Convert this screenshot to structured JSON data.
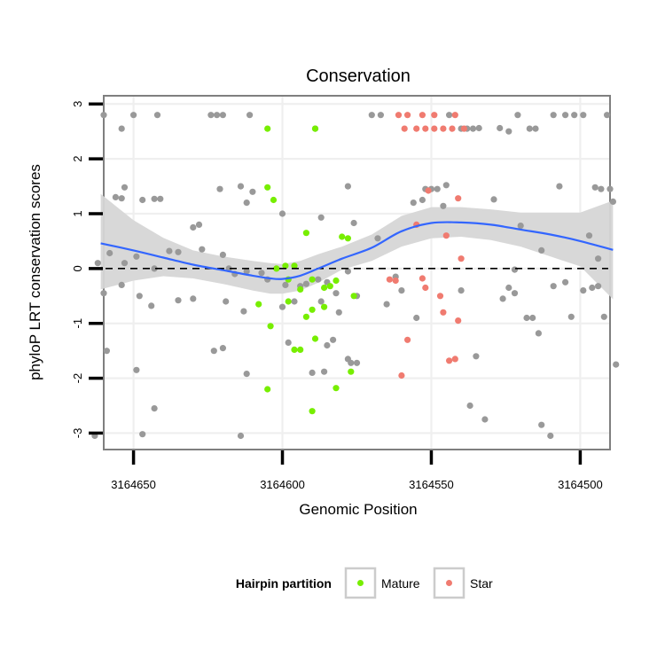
{
  "chart_data": {
    "type": "scatter",
    "title": "Conservation",
    "xlabel": "Genomic Position",
    "ylabel": "phyloP LRT conservation scores",
    "x_reversed": true,
    "xlim": [
      3164660,
      3164490
    ],
    "ylim": [
      -3.3,
      3.15
    ],
    "x_ticks": [
      3164650,
      3164600,
      3164550,
      3164500
    ],
    "x_tick_labels": [
      "3164650",
      "3164600",
      "3164550",
      "3164500"
    ],
    "y_ticks": [
      -3,
      -2,
      -1,
      0,
      1,
      2,
      3
    ],
    "y_tick_labels": [
      "-3",
      "-2",
      "-1",
      "0",
      "1",
      "2",
      "3"
    ],
    "grid": true,
    "reference_line": {
      "y": 0,
      "style": "dashed"
    },
    "legend": {
      "title": "Hairpin partition",
      "position": "bottom",
      "entries": [
        {
          "label": "Mature",
          "color": "#77ee00"
        },
        {
          "label": "Star",
          "color": "#f07b70"
        }
      ]
    },
    "background_color": "#999999",
    "smooth": {
      "color": "#3366ff",
      "band_color": "#d6d6d6",
      "x": [
        3164661,
        3164650,
        3164640,
        3164630,
        3164620,
        3164610,
        3164604,
        3164600,
        3164594,
        3164588,
        3164580,
        3164570,
        3164560,
        3164550,
        3164540,
        3164530,
        3164520,
        3164510,
        3164500,
        3164489
      ],
      "y": [
        0.46,
        0.33,
        0.2,
        0.07,
        -0.03,
        -0.13,
        -0.18,
        -0.19,
        -0.13,
        0.0,
        0.18,
        0.38,
        0.68,
        0.83,
        0.84,
        0.8,
        0.71,
        0.62,
        0.5,
        0.34
      ],
      "lower": [
        -0.38,
        -0.22,
        -0.14,
        -0.18,
        -0.28,
        -0.4,
        -0.46,
        -0.46,
        -0.4,
        -0.26,
        -0.02,
        0.14,
        0.4,
        0.55,
        0.58,
        0.52,
        0.4,
        0.22,
        0.04,
        -0.56
      ],
      "upper": [
        1.36,
        0.88,
        0.56,
        0.33,
        0.22,
        0.14,
        0.1,
        0.08,
        0.14,
        0.26,
        0.4,
        0.62,
        0.96,
        1.12,
        1.12,
        1.08,
        1.02,
        1.02,
        1.02,
        1.24
      ]
    },
    "series": [
      {
        "group": "Other",
        "color": "#999999",
        "points": [
          [
            3164660,
            2.8
          ],
          [
            3164650,
            2.8
          ],
          [
            3164642,
            2.8
          ],
          [
            3164624,
            2.8
          ],
          [
            3164622,
            2.8
          ],
          [
            3164620,
            2.8
          ],
          [
            3164611,
            2.8
          ],
          [
            3164570,
            2.8
          ],
          [
            3164567,
            2.8
          ],
          [
            3164544,
            2.8
          ],
          [
            3164521,
            2.8
          ],
          [
            3164509,
            2.8
          ],
          [
            3164505,
            2.8
          ],
          [
            3164502,
            2.8
          ],
          [
            3164499,
            2.8
          ],
          [
            3164491,
            2.8
          ],
          [
            3164540,
            2.55
          ],
          [
            3164538,
            2.55
          ],
          [
            3164536,
            2.55
          ],
          [
            3164517,
            2.55
          ],
          [
            3164515,
            2.55
          ],
          [
            3164654,
            2.55
          ],
          [
            3164589,
            2.55
          ],
          [
            3164534,
            2.56
          ],
          [
            3164527,
            2.56
          ],
          [
            3164524,
            2.5
          ],
          [
            3164614,
            1.5
          ],
          [
            3164621,
            1.45
          ],
          [
            3164610,
            1.4
          ],
          [
            3164578,
            1.5
          ],
          [
            3164545,
            1.52
          ],
          [
            3164548,
            1.45
          ],
          [
            3164550,
            1.45
          ],
          [
            3164552,
            1.45
          ],
          [
            3164653,
            1.48
          ],
          [
            3164654,
            1.28
          ],
          [
            3164647,
            1.25
          ],
          [
            3164643,
            1.27
          ],
          [
            3164641,
            1.27
          ],
          [
            3164656,
            1.3
          ],
          [
            3164612,
            1.2
          ],
          [
            3164556,
            1.2
          ],
          [
            3164553,
            1.25
          ],
          [
            3164546,
            1.14
          ],
          [
            3164529,
            1.26
          ],
          [
            3164507,
            1.5
          ],
          [
            3164495,
            1.48
          ],
          [
            3164493,
            1.45
          ],
          [
            3164490,
            1.45
          ],
          [
            3164489,
            1.22
          ],
          [
            3164628,
            0.8
          ],
          [
            3164630,
            0.75
          ],
          [
            3164600,
            1.0
          ],
          [
            3164587,
            0.93
          ],
          [
            3164576,
            0.83
          ],
          [
            3164568,
            0.55
          ],
          [
            3164520,
            0.78
          ],
          [
            3164513,
            0.33
          ],
          [
            3164497,
            0.6
          ],
          [
            3164494,
            0.18
          ],
          [
            3164662,
            0.1
          ],
          [
            3164658,
            0.28
          ],
          [
            3164653,
            0.1
          ],
          [
            3164649,
            0.22
          ],
          [
            3164643,
            0.0
          ],
          [
            3164638,
            0.32
          ],
          [
            3164635,
            0.3
          ],
          [
            3164627,
            0.35
          ],
          [
            3164620,
            0.25
          ],
          [
            3164618,
            0.0
          ],
          [
            3164616,
            -0.1
          ],
          [
            3164612,
            -0.05
          ],
          [
            3164607,
            -0.08
          ],
          [
            3164605,
            -0.2
          ],
          [
            3164599,
            -0.3
          ],
          [
            3164594,
            -0.32
          ],
          [
            3164592,
            -0.28
          ],
          [
            3164588,
            -0.2
          ],
          [
            3164585,
            -0.25
          ],
          [
            3164582,
            -0.45
          ],
          [
            3164578,
            -0.05
          ],
          [
            3164575,
            -0.5
          ],
          [
            3164565,
            -0.65
          ],
          [
            3164555,
            -0.9
          ],
          [
            3164540,
            -0.4
          ],
          [
            3164524,
            -0.35
          ],
          [
            3164522,
            -0.02
          ],
          [
            3164518,
            -0.9
          ],
          [
            3164509,
            -0.32
          ],
          [
            3164505,
            -0.25
          ],
          [
            3164503,
            -0.88
          ],
          [
            3164499,
            -0.4
          ],
          [
            3164496,
            -0.35
          ],
          [
            3164494,
            -0.32
          ],
          [
            3164492,
            -0.88
          ],
          [
            3164660,
            -0.45
          ],
          [
            3164654,
            -0.3
          ],
          [
            3164648,
            -0.5
          ],
          [
            3164644,
            -0.68
          ],
          [
            3164635,
            -0.58
          ],
          [
            3164630,
            -0.55
          ],
          [
            3164619,
            -0.6
          ],
          [
            3164613,
            -0.78
          ],
          [
            3164600,
            -0.7
          ],
          [
            3164596,
            -0.6
          ],
          [
            3164587,
            -0.6
          ],
          [
            3164581,
            -0.8
          ],
          [
            3164562,
            -0.15
          ],
          [
            3164560,
            -0.4
          ],
          [
            3164526,
            -0.55
          ],
          [
            3164522,
            -0.45
          ],
          [
            3164516,
            -0.9
          ],
          [
            3164514,
            -1.18
          ],
          [
            3164598,
            -1.35
          ],
          [
            3164585,
            -1.4
          ],
          [
            3164583,
            -1.3
          ],
          [
            3164577,
            -1.72
          ],
          [
            3164575,
            -1.72
          ],
          [
            3164620,
            -1.45
          ],
          [
            3164659,
            -1.5
          ],
          [
            3164623,
            -1.5
          ],
          [
            3164590,
            -1.9
          ],
          [
            3164586,
            -1.88
          ],
          [
            3164578,
            -1.65
          ],
          [
            3164535,
            -1.6
          ],
          [
            3164649,
            -1.85
          ],
          [
            3164612,
            -1.92
          ],
          [
            3164537,
            -2.5
          ],
          [
            3164532,
            -2.75
          ],
          [
            3164510,
            -3.05
          ],
          [
            3164643,
            -2.55
          ],
          [
            3164513,
            -2.85
          ],
          [
            3164614,
            -3.05
          ],
          [
            3164647,
            -3.02
          ],
          [
            3164663,
            -3.05
          ],
          [
            3164488,
            -1.75
          ]
        ]
      },
      {
        "group": "Mature",
        "color": "#77ee00",
        "points": [
          [
            3164605,
            2.55
          ],
          [
            3164589,
            2.55
          ],
          [
            3164605,
            1.48
          ],
          [
            3164603,
            1.25
          ],
          [
            3164592,
            0.65
          ],
          [
            3164580,
            0.58
          ],
          [
            3164578,
            0.55
          ],
          [
            3164602,
            0.0
          ],
          [
            3164599,
            0.05
          ],
          [
            3164596,
            0.05
          ],
          [
            3164598,
            -0.2
          ],
          [
            3164594,
            -0.38
          ],
          [
            3164590,
            -0.2
          ],
          [
            3164586,
            -0.35
          ],
          [
            3164584,
            -0.32
          ],
          [
            3164582,
            -0.22
          ],
          [
            3164576,
            -0.5
          ],
          [
            3164608,
            -0.65
          ],
          [
            3164598,
            -0.6
          ],
          [
            3164590,
            -0.75
          ],
          [
            3164586,
            -0.7
          ],
          [
            3164604,
            -1.05
          ],
          [
            3164592,
            -0.88
          ],
          [
            3164594,
            -1.48
          ],
          [
            3164589,
            -1.28
          ],
          [
            3164596,
            -1.48
          ],
          [
            3164577,
            -1.88
          ],
          [
            3164605,
            -2.2
          ],
          [
            3164582,
            -2.18
          ],
          [
            3164590,
            -2.6
          ]
        ]
      },
      {
        "group": "Star",
        "color": "#f07b70",
        "points": [
          [
            3164561,
            2.8
          ],
          [
            3164558,
            2.8
          ],
          [
            3164553,
            2.8
          ],
          [
            3164549,
            2.8
          ],
          [
            3164542,
            2.8
          ],
          [
            3164559,
            2.55
          ],
          [
            3164555,
            2.55
          ],
          [
            3164552,
            2.55
          ],
          [
            3164549,
            2.55
          ],
          [
            3164546,
            2.55
          ],
          [
            3164543,
            2.55
          ],
          [
            3164539,
            2.55
          ],
          [
            3164551,
            1.42
          ],
          [
            3164541,
            1.28
          ],
          [
            3164555,
            0.8
          ],
          [
            3164545,
            0.6
          ],
          [
            3164540,
            0.18
          ],
          [
            3164564,
            -0.2
          ],
          [
            3164562,
            -0.22
          ],
          [
            3164553,
            -0.18
          ],
          [
            3164552,
            -0.35
          ],
          [
            3164547,
            -0.5
          ],
          [
            3164546,
            -0.8
          ],
          [
            3164541,
            -0.95
          ],
          [
            3164558,
            -1.3
          ],
          [
            3164542,
            -1.65
          ],
          [
            3164544,
            -1.68
          ],
          [
            3164560,
            -1.95
          ]
        ]
      }
    ]
  }
}
